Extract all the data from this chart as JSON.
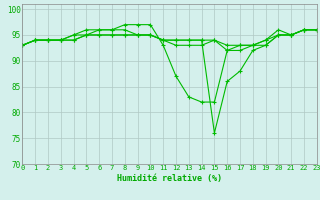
{
  "xlabel": "Humidité relative (%)",
  "bg_color": "#d4f0ec",
  "grid_color": "#b0c8c4",
  "line_color": "#00bb00",
  "x_ticks": [
    0,
    1,
    2,
    3,
    4,
    5,
    6,
    7,
    8,
    9,
    10,
    11,
    12,
    13,
    14,
    15,
    16,
    17,
    18,
    19,
    20,
    21,
    22,
    23
  ],
  "ylim": [
    70,
    101
  ],
  "y_ticks": [
    70,
    75,
    80,
    85,
    90,
    95,
    100
  ],
  "series": [
    [
      93,
      94,
      94,
      94,
      94,
      95,
      96,
      96,
      97,
      97,
      97,
      93,
      87,
      83,
      82,
      82,
      92,
      93,
      93,
      93,
      95,
      95,
      96,
      96
    ],
    [
      93,
      94,
      94,
      94,
      95,
      96,
      96,
      96,
      96,
      95,
      95,
      94,
      94,
      94,
      94,
      76,
      86,
      88,
      92,
      93,
      95,
      95,
      96,
      96
    ],
    [
      93,
      94,
      94,
      94,
      95,
      95,
      95,
      95,
      95,
      95,
      95,
      94,
      94,
      94,
      94,
      94,
      92,
      92,
      93,
      94,
      95,
      95,
      96,
      96
    ],
    [
      93,
      94,
      94,
      94,
      94,
      95,
      95,
      95,
      95,
      95,
      95,
      94,
      93,
      93,
      93,
      94,
      93,
      93,
      93,
      94,
      96,
      95,
      96,
      96
    ]
  ]
}
